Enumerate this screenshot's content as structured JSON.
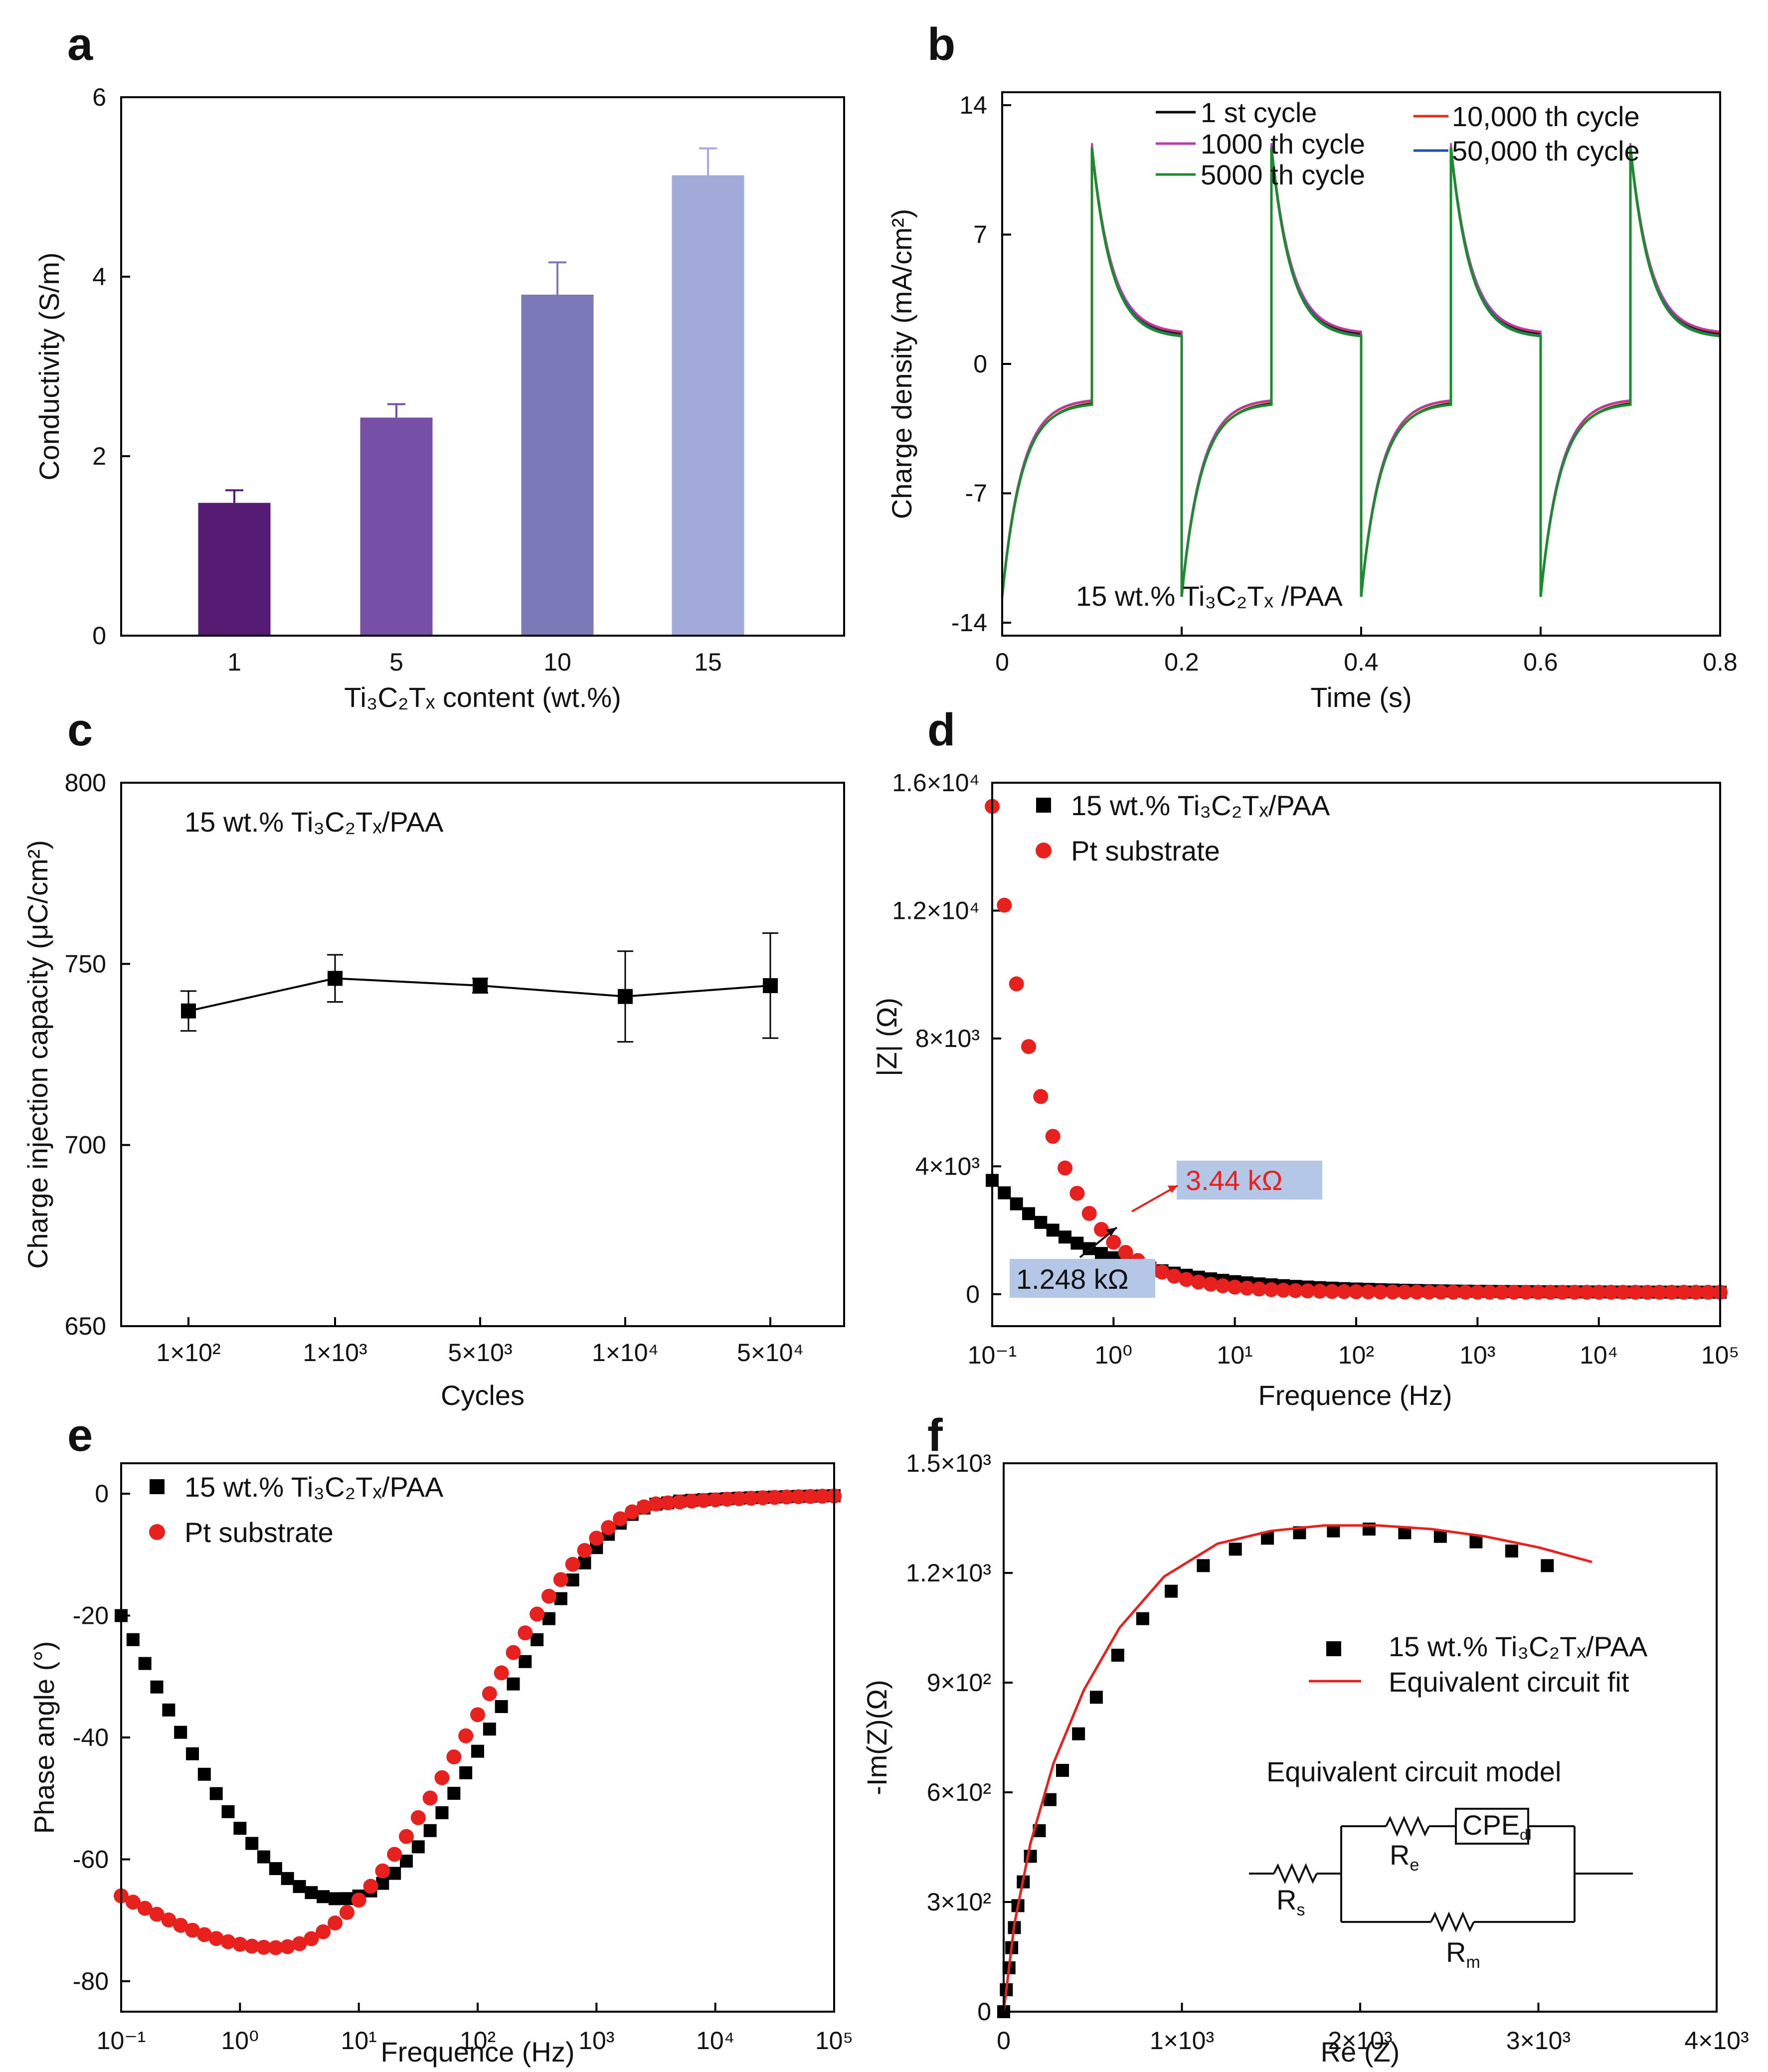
{
  "chart_data": [
    {
      "panel": "a",
      "type": "bar",
      "categories": [
        "1",
        "5",
        "10",
        "15"
      ],
      "values": [
        1.48,
        2.43,
        3.8,
        5.13
      ],
      "errors": [
        0.14,
        0.15,
        0.36,
        0.3
      ],
      "colors": [
        "#561c74",
        "#7550a6",
        "#7b79b8",
        "#a1aad9"
      ],
      "xlabel": "Ti₃C₂Tₓ content (wt.%)",
      "ylabel": "Conductivity (S/m)",
      "ylim": [
        0,
        6
      ],
      "yticks": [
        "0",
        "2",
        "4",
        "6"
      ]
    },
    {
      "panel": "b",
      "type": "line",
      "xlabel": "Time (s)",
      "ylabel": "Charge density (mA/cm²)",
      "xlim": [
        0,
        0.8
      ],
      "ylim": [
        -14.7,
        14.7
      ],
      "xticks": [
        "0",
        "0.2",
        "0.4",
        "0.6",
        "0.8"
      ],
      "yticks": [
        "14",
        "7",
        "0",
        "-7",
        "-14"
      ],
      "pulse_period_s": 0.1,
      "anodic_peak": 11.8,
      "anodic_end": 1.5,
      "cathodic_peak": -12.5,
      "cathodic_end": -2.0,
      "series": [
        {
          "name": "1 st cycle",
          "color": "#000000"
        },
        {
          "name": "1000 th cycle",
          "color": "#b040b0"
        },
        {
          "name": "5000 th cycle",
          "color": "#1a8c2e"
        },
        {
          "name": "10,000 th cycle",
          "color": "#e8281e"
        },
        {
          "name": "50,000 th cycle",
          "color": "#1f4fae"
        }
      ],
      "annotation": "15 wt.% Ti₃C₂Tₓ /PAA"
    },
    {
      "panel": "c",
      "type": "line",
      "categories": [
        "1×10²",
        "1×10³",
        "5×10³",
        "1×10⁴",
        "5×10⁴"
      ],
      "values": [
        737,
        746,
        744,
        741,
        744
      ],
      "errors": [
        5.5,
        6.5,
        2.0,
        12.5,
        14.5
      ],
      "xlabel": "Cycles",
      "ylabel": "Charge injection capacity (μC/cm²)",
      "ylim": [
        650,
        800
      ],
      "yticks": [
        "650",
        "700",
        "750",
        "800"
      ],
      "annotation": "15 wt.% Ti₃C₂Tₓ/PAA"
    },
    {
      "panel": "d",
      "type": "scatter",
      "xscale": "log",
      "xlim_log10": [
        -1,
        5
      ],
      "ylim": [
        -1000,
        16000
      ],
      "xticks": [
        "10⁻¹",
        "10⁰",
        "10¹",
        "10²",
        "10³",
        "10⁴",
        "10⁵"
      ],
      "yticks": [
        "0",
        "4×10³",
        "8×10³",
        "1.2×10⁴",
        "1.6×10⁴"
      ],
      "xlabel": "Frequence (Hz)",
      "ylabel": "|Z| (Ω)",
      "series": [
        {
          "name": "15 wt.% Ti₃C₂Tₓ/PAA",
          "color": "#000000",
          "marker": "square",
          "z_at_0_1Hz": 3500,
          "decay_width_log10": 0.85
        },
        {
          "name": "Pt substrate",
          "color": "#e8201e",
          "marker": "circle",
          "z_at_0_1Hz": 15200,
          "decay_width_log10": 0.44
        }
      ],
      "annotations": [
        {
          "text": "3.44 kΩ",
          "color": "#e8201e"
        },
        {
          "text": "1.248 kΩ",
          "color": "#111111"
        }
      ]
    },
    {
      "panel": "e",
      "type": "scatter",
      "xscale": "log",
      "xlim_log10": [
        -1,
        5
      ],
      "ylim": [
        -85,
        5
      ],
      "xticks": [
        "10⁻¹",
        "10⁰",
        "10¹",
        "10²",
        "10³",
        "10⁴",
        "10⁵"
      ],
      "yticks": [
        "0",
        "-20",
        "-40",
        "-60",
        "-80"
      ],
      "xlabel": "Frequence (Hz)",
      "ylabel": "Phase angle (°)",
      "series": [
        {
          "name": "15 wt.% Ti₃C₂Tₓ/PAA",
          "color": "#000000",
          "marker": "square",
          "min_phase": -66.5,
          "min_log10_freq": 0.85,
          "low_freq_phase": -20
        },
        {
          "name": "Pt substrate",
          "color": "#e8201e",
          "marker": "circle",
          "min_phase": -74.5,
          "min_log10_freq": 0.3,
          "low_freq_phase": -66
        }
      ]
    },
    {
      "panel": "f",
      "type": "scatter",
      "xlim": [
        0,
        4000
      ],
      "ylim": [
        0,
        1500
      ],
      "xticks": [
        "0",
        "1×10³",
        "2×10³",
        "3×10³",
        "4×10³"
      ],
      "yticks": [
        "0",
        "3×10²",
        "6×10²",
        "9×10²",
        "1.2×10³",
        "1.5×10³"
      ],
      "xlabel": "Re (Z)",
      "ylabel": "-Im(Z)(Ω)",
      "measured": {
        "re": [
          0,
          15,
          30,
          45,
          60,
          80,
          110,
          150,
          200,
          260,
          330,
          420,
          520,
          640,
          780,
          940,
          1120,
          1300,
          1480,
          1660,
          1850,
          2050,
          2250,
          2450,
          2650,
          2850,
          3050
        ],
        "im": [
          0,
          60,
          120,
          175,
          230,
          290,
          355,
          425,
          495,
          580,
          660,
          760,
          860,
          975,
          1075,
          1150,
          1220,
          1265,
          1295,
          1310,
          1315,
          1320,
          1310,
          1300,
          1285,
          1260,
          1220
        ]
      },
      "fit": {
        "re": [
          0,
          60,
          150,
          280,
          450,
          650,
          900,
          1200,
          1500,
          1800,
          2100,
          2400,
          2700,
          3000,
          3300
        ],
        "im": [
          0,
          240,
          460,
          680,
          880,
          1050,
          1190,
          1280,
          1315,
          1330,
          1330,
          1320,
          1300,
          1270,
          1230
        ]
      },
      "series": [
        {
          "name": "15 wt.% Ti₃C₂Tₓ/PAA",
          "color": "#000000",
          "marker": "square"
        },
        {
          "name": "Equivalent circuit fit",
          "color": "#e8201e",
          "marker": "line"
        }
      ],
      "circuit": {
        "title": "Equivalent circuit model",
        "labels": [
          "R",
          "s",
          "R",
          "e",
          "CPE",
          "dl",
          "R",
          "m"
        ]
      }
    }
  ],
  "panels": {
    "a": "a",
    "b": "b",
    "c": "c",
    "d": "d",
    "e": "e",
    "f": "f"
  }
}
